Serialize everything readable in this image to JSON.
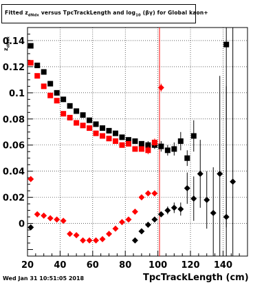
{
  "title": "Fitted  z_dNdx  versus TpcTrackLength and log_10 (βγ) for Global kaon+",
  "ylabel": "z_dNdx",
  "xlabel": "TpcTrackLength (cm)",
  "footer": "Wed Jan 31 10:51:05 2018",
  "chart_data": {
    "type": "scatter",
    "title": "Fitted z_dNdx versus TpcTrackLength and log_10 (βγ) for Global kaon+",
    "xlabel": "TpcTrackLength (cm)",
    "ylabel": "z_dNdx",
    "xlim": [
      20,
      155
    ],
    "ylim": [
      -0.025,
      0.15
    ],
    "grid": true,
    "xticks": [
      20,
      40,
      60,
      80,
      100,
      120,
      140
    ],
    "xtick_labels": [
      "20",
      "40",
      "60",
      "80",
      "100",
      "120",
      "140"
    ],
    "yticks": [
      0,
      0.02,
      0.04,
      0.06,
      0.08,
      0.1,
      0.12,
      0.14
    ],
    "ytick_labels": [
      "0",
      "0.02",
      "0.04",
      "0.06",
      "0.08",
      "0.1",
      "0.12",
      "0.14"
    ],
    "vline_x": 101,
    "colors": {
      "black": "#000000",
      "red": "#ff0000"
    },
    "series": [
      {
        "color": "#000000",
        "marker": "square",
        "x": [
          22,
          26,
          30,
          34,
          38,
          42,
          46,
          50,
          54,
          58,
          62,
          66,
          70,
          74,
          78,
          82,
          86,
          90,
          94,
          98,
          102,
          106,
          110,
          114,
          118,
          122,
          142
        ],
        "y": [
          0.136,
          0.121,
          0.116,
          0.107,
          0.1,
          0.095,
          0.09,
          0.086,
          0.083,
          0.079,
          0.076,
          0.073,
          0.071,
          0.069,
          0.066,
          0.064,
          0.063,
          0.061,
          0.06,
          0.06,
          0.059,
          0.056,
          0.057,
          0.063,
          0.05,
          0.067,
          0.137
        ],
        "err": [
          0.002,
          0.002,
          0.002,
          0.002,
          0.002,
          0.002,
          0.002,
          0.002,
          0.002,
          0.002,
          0.002,
          0.002,
          0.002,
          0.002,
          0.002,
          0.002,
          0.002,
          0.002,
          0.003,
          0.003,
          0.004,
          0.004,
          0.005,
          0.007,
          0.006,
          0.012,
          0.14
        ]
      },
      {
        "color": "#ff0000",
        "marker": "square",
        "x": [
          22,
          26,
          30,
          34,
          38,
          42,
          46,
          50,
          54,
          58,
          62,
          66,
          70,
          74,
          78,
          82,
          86,
          90,
          94,
          98
        ],
        "y": [
          0.123,
          0.113,
          0.105,
          0.098,
          0.094,
          0.084,
          0.081,
          0.077,
          0.075,
          0.073,
          0.069,
          0.067,
          0.065,
          0.063,
          0.06,
          0.061,
          0.057,
          0.057,
          0.056,
          0.062
        ],
        "err": [
          0.002,
          0.002,
          0.002,
          0.002,
          0.002,
          0.002,
          0.002,
          0.002,
          0.002,
          0.002,
          0.002,
          0.002,
          0.002,
          0.002,
          0.002,
          0.002,
          0.002,
          0.002,
          0.003,
          0.003
        ]
      },
      {
        "color": "#000000",
        "marker": "diamond",
        "x": [
          22,
          86,
          90,
          94,
          98,
          102,
          106,
          110,
          114,
          118,
          122,
          126,
          130,
          134,
          138,
          142,
          146
        ],
        "y": [
          -0.003,
          -0.013,
          -0.006,
          -0.001,
          0.003,
          0.007,
          0.01,
          0.012,
          0.011,
          0.027,
          0.019,
          0.038,
          0.018,
          0.008,
          0.038,
          0.005,
          0.032
        ],
        "err": [
          0.002,
          0.002,
          0.002,
          0.002,
          0.002,
          0.002,
          0.003,
          0.004,
          0.005,
          0.012,
          0.017,
          0.026,
          0.022,
          0.035,
          0.075,
          0.1,
          0.12
        ]
      },
      {
        "color": "#ff0000",
        "marker": "diamond",
        "x": [
          22,
          26,
          30,
          34,
          38,
          42,
          46,
          50,
          54,
          58,
          62,
          66,
          70,
          74,
          78,
          82,
          86,
          90,
          94,
          98,
          102
        ],
        "y": [
          0.034,
          0.007,
          0.006,
          0.004,
          0.003,
          0.002,
          -0.008,
          -0.009,
          -0.013,
          -0.013,
          -0.013,
          -0.012,
          -0.008,
          -0.004,
          0.001,
          0.003,
          0.009,
          0.02,
          0.023,
          0.023,
          0.104
        ],
        "err": [
          0.002,
          0.002,
          0.002,
          0.002,
          0.002,
          0.002,
          0.002,
          0.002,
          0.002,
          0.002,
          0.002,
          0.002,
          0.002,
          0.002,
          0.002,
          0.002,
          0.002,
          0.002,
          0.002,
          0.002,
          0.003
        ]
      }
    ]
  }
}
